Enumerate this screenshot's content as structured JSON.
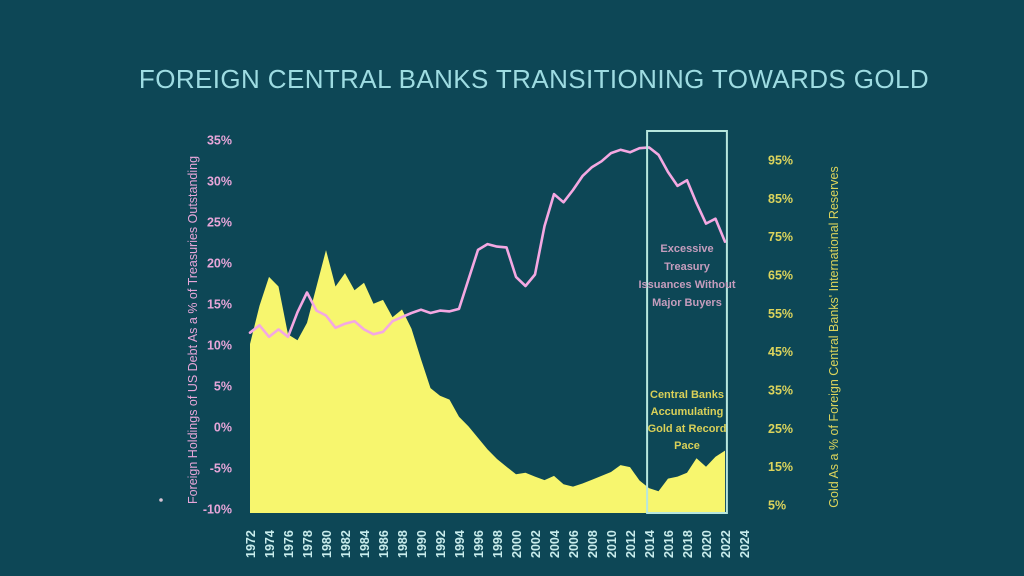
{
  "page": {
    "title": "FOREIGN CENTRAL BANKS TRANSITIONING TOWARDS GOLD"
  },
  "colors": {
    "background": "#0d4756",
    "title": "#9edce2",
    "treasury_line": "#f4a8e2",
    "treasury_labels": "#e7a6d9",
    "gold_area": "#f7f66e",
    "gold_labels": "#dcd45c",
    "x_labels": "#c8ecec",
    "highlight_box_border": "#b7e7de",
    "annotation_treasury": "#c59dbd",
    "annotation_gold": "#d9d058",
    "dot": "#d8c4d4"
  },
  "chart_data": {
    "type": "line",
    "title": "FOREIGN CENTRAL BANKS TRANSITIONING TOWARDS GOLD",
    "x": [
      1972,
      1973,
      1974,
      1975,
      1976,
      1977,
      1978,
      1979,
      1980,
      1981,
      1982,
      1983,
      1984,
      1985,
      1986,
      1987,
      1988,
      1989,
      1990,
      1991,
      1992,
      1993,
      1994,
      1995,
      1996,
      1997,
      1998,
      1999,
      2000,
      2001,
      2002,
      2003,
      2004,
      2005,
      2006,
      2007,
      2008,
      2009,
      2010,
      2011,
      2012,
      2013,
      2014,
      2015,
      2016,
      2017,
      2018,
      2019,
      2020,
      2021,
      2022
    ],
    "series": [
      {
        "name": "Foreign Holdings of US Debt As a % of Treasuries Outstanding",
        "axis": "left",
        "style": "line",
        "color": "#f4a8e2",
        "values": [
          11.5,
          12.4,
          11.0,
          11.9,
          11.0,
          14.0,
          16.4,
          14.2,
          13.6,
          12.1,
          12.6,
          12.9,
          11.9,
          11.3,
          11.6,
          12.9,
          13.4,
          13.9,
          14.3,
          13.9,
          14.2,
          14.1,
          14.4,
          18.0,
          21.6,
          22.3,
          22.0,
          21.9,
          18.3,
          17.2,
          18.6,
          24.5,
          28.4,
          27.4,
          28.9,
          30.6,
          31.7,
          32.4,
          33.4,
          33.8,
          33.5,
          34.0,
          34.1,
          33.2,
          31.1,
          29.4,
          30.1,
          27.3,
          24.8,
          25.4,
          22.6
        ]
      },
      {
        "name": "Gold As a % of Foreign Central Banks' International Reserves",
        "axis": "right",
        "style": "area",
        "color": "#f7f66e",
        "values": [
          47,
          57,
          64.5,
          62,
          49.5,
          48,
          52.5,
          62,
          71.5,
          62,
          65.5,
          61,
          63,
          57.5,
          58.5,
          54,
          56,
          51,
          43,
          35.5,
          33.5,
          32.5,
          28,
          25.5,
          22.5,
          19.5,
          17,
          15,
          13,
          13.4,
          12.4,
          11.5,
          12.6,
          10.4,
          9.8,
          10.6,
          11.6,
          12.6,
          13.6,
          15.4,
          14.9,
          11.4,
          9.4,
          8.6,
          11.9,
          12.4,
          13.4,
          17.2,
          15.0,
          17.6,
          19.2
        ]
      }
    ],
    "left_axis": {
      "label": "Foreign Holdings of US Debt As a % of Treasuries Outstanding",
      "ticks": [
        35,
        30,
        25,
        20,
        15,
        10,
        5,
        0,
        -5,
        -10
      ],
      "tick_labels": [
        "35%",
        "30%",
        "25%",
        "20%",
        "15%",
        "10%",
        "5%",
        "0%",
        "-5%",
        "-10%"
      ],
      "range": [
        -10.7,
        36.5
      ]
    },
    "right_axis": {
      "label": "Gold As a % of Foreign Central Banks' International Reserves",
      "ticks": [
        95,
        85,
        75,
        65,
        55,
        45,
        35,
        25,
        15,
        5
      ],
      "tick_labels": [
        "95%",
        "85%",
        "75%",
        "65%",
        "55%",
        "45%",
        "35%",
        "25%",
        "15%",
        "5%"
      ],
      "range": [
        2.9,
        103.4
      ]
    },
    "x_tick_labels": [
      "1972",
      "1974",
      "1976",
      "1978",
      "1980",
      "1982",
      "1984",
      "1986",
      "1988",
      "1990",
      "1992",
      "1994",
      "1996",
      "1998",
      "2000",
      "2002",
      "2004",
      "2006",
      "2008",
      "2010",
      "2012",
      "2014",
      "2016",
      "2018",
      "2020",
      "2022",
      "2024"
    ],
    "highlight": {
      "x_from": 2013.8,
      "x_to": 2022.2,
      "annotations": [
        {
          "lines": [
            "Excessive",
            "Treasury",
            "Issuances Without",
            "Major Buyers"
          ],
          "color": "#c59dbd"
        },
        {
          "lines": [
            "Central Banks",
            "Accumulating",
            "Gold at Record",
            "Pace"
          ],
          "color": "#d9d058"
        }
      ]
    },
    "legend": "none",
    "grid": "off"
  }
}
